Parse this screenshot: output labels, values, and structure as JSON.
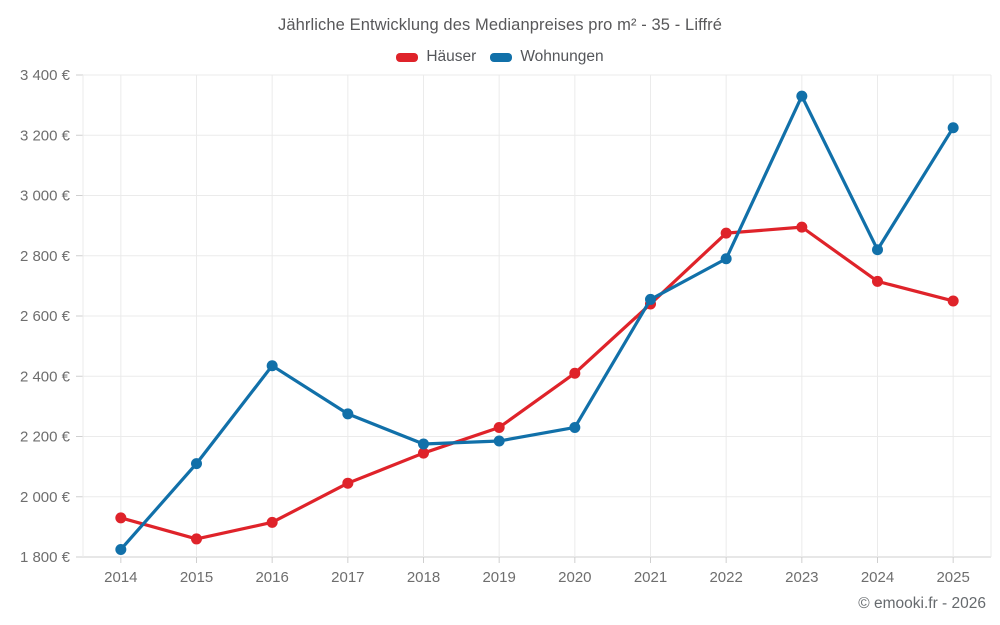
{
  "title": "Jährliche Entwicklung des Medianpreises pro m² - 35 - Liffré",
  "footer": "© emooki.fr - 2026",
  "legend": [
    {
      "label": "Häuser",
      "color": "#df232a"
    },
    {
      "label": "Wohnungen",
      "color": "#1170a9"
    }
  ],
  "chart_data": {
    "type": "line",
    "title": "Jährliche Entwicklung des Medianpreises pro m² - 35 - Liffré",
    "x": [
      2014,
      2015,
      2016,
      2017,
      2018,
      2019,
      2020,
      2021,
      2022,
      2023,
      2024,
      2025
    ],
    "series": [
      {
        "name": "Häuser",
        "color": "#df232a",
        "values": [
          1930,
          1860,
          1915,
          2045,
          2145,
          2230,
          2410,
          2640,
          2875,
          2895,
          2715,
          2650
        ]
      },
      {
        "name": "Wohnungen",
        "color": "#1170a9",
        "values": [
          1825,
          2110,
          2435,
          2275,
          2175,
          2185,
          2230,
          2655,
          2790,
          3330,
          2820,
          3225
        ]
      }
    ],
    "xlabel": "",
    "ylabel": "",
    "ylim": [
      1800,
      3400
    ],
    "y_tick_step": 200,
    "y_tick_labels": [
      "1 800 €",
      "2 000 €",
      "2 200 €",
      "2 400 €",
      "2 600 €",
      "2 800 €",
      "3 000 €",
      "3 200 €",
      "3 400 €"
    ],
    "grid": true,
    "legend_position": "top",
    "marker": "circle",
    "currency": "€"
  }
}
